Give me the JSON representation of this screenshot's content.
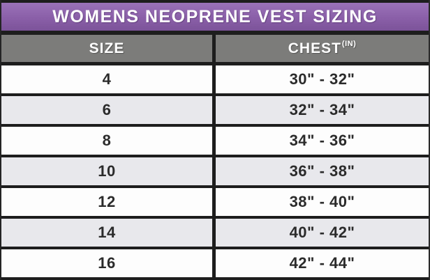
{
  "title": "WOMENS NEOPRENE VEST SIZING",
  "columns": {
    "size_label": "SIZE",
    "chest_label": "CHEST",
    "chest_unit_superscript": "(IN)"
  },
  "rows": [
    {
      "size": "4",
      "chest": "30\" - 32\""
    },
    {
      "size": "6",
      "chest": "32\" - 34\""
    },
    {
      "size": "8",
      "chest": "34\" - 36\""
    },
    {
      "size": "10",
      "chest": "36\" - 38\""
    },
    {
      "size": "12",
      "chest": "38\" - 40\""
    },
    {
      "size": "14",
      "chest": "40\" - 42\""
    },
    {
      "size": "16",
      "chest": "42\" - 44\""
    }
  ],
  "colors": {
    "accent_purple": "#8a5fa8",
    "header_gray": "#7c7c7a",
    "row_alt_gray": "#e8e8ec",
    "border_dark": "#1d1d1d",
    "title_text": "#ffffff",
    "body_text": "#2b2b2b"
  },
  "chart_data": {
    "type": "table",
    "title": "WOMENS NEOPRENE VEST SIZING",
    "columns": [
      "SIZE",
      "CHEST(IN)"
    ],
    "rows": [
      [
        "4",
        "30\" - 32\""
      ],
      [
        "6",
        "32\" - 34\""
      ],
      [
        "8",
        "34\" - 36\""
      ],
      [
        "10",
        "36\" - 38\""
      ],
      [
        "12",
        "38\" - 40\""
      ],
      [
        "14",
        "40\" - 42\""
      ],
      [
        "16",
        "42\" - 44\""
      ]
    ],
    "layout": {
      "alternating_row_shading": true,
      "header_style": "gray-bar-white-text",
      "title_style": "purple-bar-white-text"
    }
  }
}
